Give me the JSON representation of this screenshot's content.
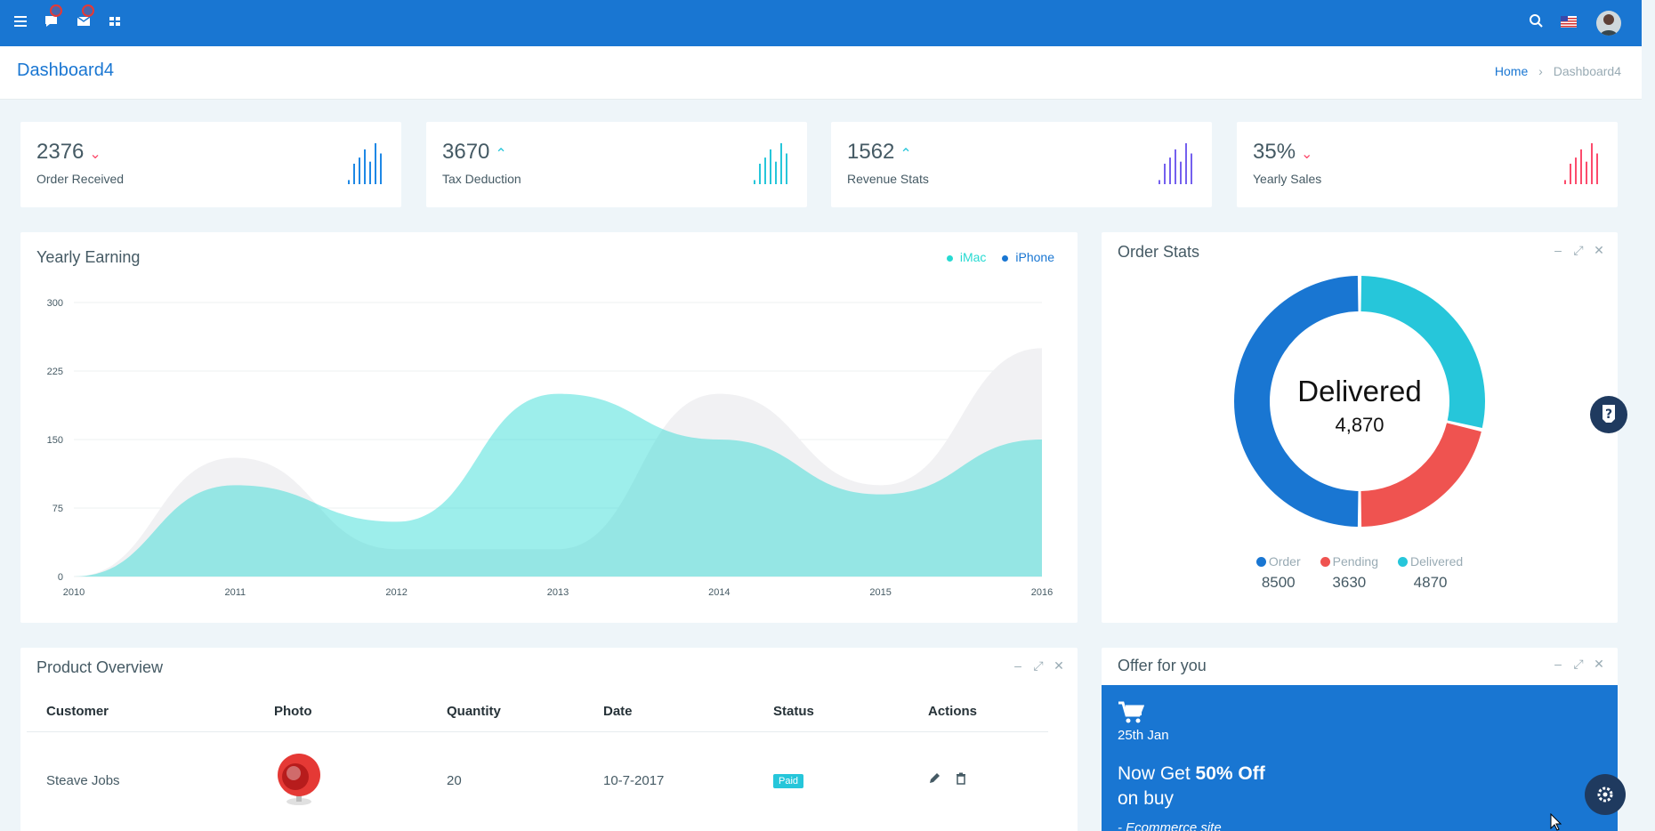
{
  "header": {
    "page_title": "Dashboard4",
    "breadcrumb": {
      "home": "Home",
      "current": "Dashboard4"
    },
    "icons": [
      "menu-icon",
      "comment-icon",
      "mail-icon",
      "apps-icon",
      "search-icon",
      "flag-icon",
      "avatar"
    ]
  },
  "stats": [
    {
      "value": "2376",
      "trend": "down",
      "label": "Order Received",
      "color": "#1e88e5",
      "bars": [
        0.1,
        0.5,
        0.65,
        0.85,
        0.55,
        1.0,
        0.75
      ]
    },
    {
      "value": "3670",
      "trend": "up",
      "label": "Tax Deduction",
      "color": "#26c6da",
      "bars": [
        0.1,
        0.5,
        0.65,
        0.85,
        0.55,
        1.0,
        0.75
      ]
    },
    {
      "value": "1562",
      "trend": "up",
      "label": "Revenue Stats",
      "color": "#7460ee",
      "bars": [
        0.1,
        0.5,
        0.65,
        0.85,
        0.55,
        1.0,
        0.75
      ]
    },
    {
      "value": "35%",
      "trend": "down",
      "label": "Yearly Sales",
      "color": "#fc4b6c",
      "bars": [
        0.1,
        0.5,
        0.65,
        0.85,
        0.55,
        1.0,
        0.75
      ]
    }
  ],
  "yearly_earning": {
    "title": "Yearly Earning",
    "legend": [
      {
        "name": "iMac",
        "color": "#26dad2"
      },
      {
        "name": "iPhone",
        "color": "#1976d2"
      }
    ]
  },
  "chart_data": {
    "type": "area",
    "x": [
      "2010",
      "2011",
      "2012",
      "2013",
      "2014",
      "2015",
      "2016"
    ],
    "series": [
      {
        "name": "iPhone",
        "color": "#f1f1f3",
        "values": [
          0,
          130,
          30,
          30,
          200,
          100,
          250
        ]
      },
      {
        "name": "iMac",
        "color": "#26dad2",
        "values": [
          0,
          100,
          60,
          200,
          150,
          90,
          150
        ]
      }
    ],
    "yticks": [
      "0",
      "75",
      "150",
      "225",
      "300"
    ],
    "ylim": [
      0,
      300
    ],
    "grid": true
  },
  "order_stats": {
    "title": "Order Stats",
    "center_title": "Delivered",
    "center_value": "4,870",
    "slices": [
      {
        "name": "Order",
        "value": 8500,
        "label": "8500",
        "color": "#1976d2"
      },
      {
        "name": "Pending",
        "value": 3630,
        "label": "3630",
        "color": "#ef5350"
      },
      {
        "name": "Delivered",
        "value": 4870,
        "label": "4870",
        "color": "#26c6da"
      }
    ]
  },
  "product_overview": {
    "title": "Product Overview",
    "columns": [
      "Customer",
      "Photo",
      "Quantity",
      "Date",
      "Status",
      "Actions"
    ],
    "rows": [
      {
        "customer": "Steave Jobs",
        "quantity": "20",
        "date": "10-7-2017",
        "status": "Paid"
      }
    ]
  },
  "offer": {
    "title": "Offer for you",
    "date": "25th Jan",
    "line1_pre": "Now Get ",
    "line1_bold": "50% Off",
    "line2": "on buy",
    "site": "- Ecommerce site"
  },
  "tools": {
    "minimize": "–",
    "expand": "⤢",
    "close": "✕"
  }
}
